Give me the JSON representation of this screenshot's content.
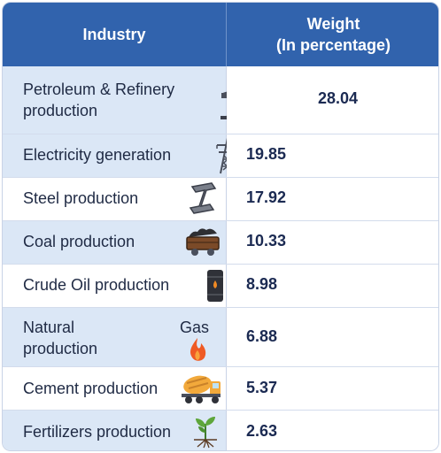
{
  "header": {
    "industry": "Industry",
    "weight_line1": "Weight",
    "weight_line2": "(In percentage)"
  },
  "rows": [
    {
      "industry_line1": "Petroleum & Refinery",
      "industry_line2": "production",
      "weight": "28.04",
      "icon": "oil-pump-icon"
    },
    {
      "industry": "Electricity generation",
      "weight": "19.85",
      "icon": "power-tower-icon"
    },
    {
      "industry": "Steel production",
      "weight": "17.92",
      "icon": "steel-beam-icon"
    },
    {
      "industry": "Coal production",
      "weight": "10.33",
      "icon": "coal-cart-icon"
    },
    {
      "industry": "Crude Oil production",
      "weight": "8.98",
      "icon": "oil-barrel-icon"
    },
    {
      "industry_line1": "Natural",
      "industry_gas": "Gas",
      "industry_line2": "production",
      "weight": "6.88",
      "icon": "flame-icon"
    },
    {
      "industry": "Cement production",
      "weight": "5.37",
      "icon": "cement-mixer-icon"
    },
    {
      "industry": "Fertilizers production",
      "weight": "2.63",
      "icon": "plant-sprout-icon"
    }
  ],
  "colors": {
    "header_bg": "#3163ad",
    "row_shade": "#dbe7f6",
    "value_text": "#1b2a52"
  }
}
